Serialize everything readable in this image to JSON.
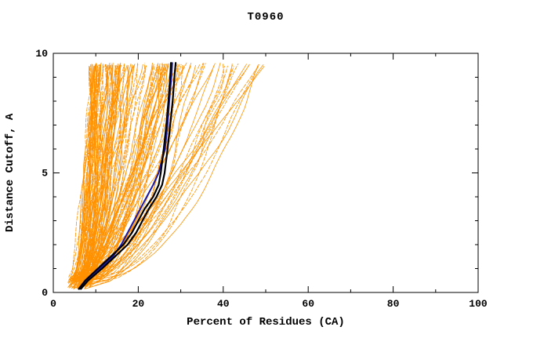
{
  "chart_data": {
    "type": "line",
    "title": "T0960",
    "xlabel": "Percent of Residues (CA)",
    "ylabel": "Distance Cutoff, A",
    "xlim": [
      0,
      100
    ],
    "ylim": [
      0,
      10
    ],
    "x_major_ticks": [
      0,
      20,
      40,
      60,
      80,
      100
    ],
    "x_minor_ticks": [
      10,
      30,
      50,
      70,
      90
    ],
    "y_major_ticks": [
      0,
      5,
      10
    ],
    "y_minor_ticks": [
      1,
      2,
      3,
      4,
      6,
      7,
      8,
      9
    ],
    "grid": false,
    "legend": "none",
    "background": "#ffffff",
    "frame_color": "#000000",
    "ensemble": {
      "name": "server-model-curves",
      "color": "#ff9100",
      "count": 135,
      "seed": 7,
      "x_start_range": [
        3.5,
        9
      ],
      "x_top_range": [
        9.5,
        50
      ],
      "y_start_max": 0.65,
      "y_end": 9.6
    },
    "highlight_series": [
      {
        "name": "model-blue",
        "color": "#1a1aa6",
        "width": 2,
        "points": [
          [
            6.2,
            0.15
          ],
          [
            8,
            0.5
          ],
          [
            11,
            1
          ],
          [
            14,
            1.5
          ],
          [
            16,
            2
          ],
          [
            17.5,
            2.5
          ],
          [
            19,
            3
          ],
          [
            20.5,
            3.5
          ],
          [
            22,
            4
          ],
          [
            23.5,
            4.5
          ],
          [
            24.8,
            5
          ],
          [
            26.3,
            6
          ],
          [
            26.9,
            7
          ],
          [
            27.3,
            8
          ],
          [
            27.8,
            9
          ],
          [
            28,
            9.6
          ]
        ]
      },
      {
        "name": "model-black-1",
        "color": "#000000",
        "width": 2.2,
        "points": [
          [
            6,
            0.15
          ],
          [
            7.5,
            0.5
          ],
          [
            10.5,
            1
          ],
          [
            13.5,
            1.5
          ],
          [
            16.5,
            2
          ],
          [
            18.5,
            2.5
          ],
          [
            20,
            3
          ],
          [
            21.5,
            3.5
          ],
          [
            23.5,
            4
          ],
          [
            24.8,
            4.5
          ],
          [
            25.3,
            5
          ],
          [
            26,
            6
          ],
          [
            26.6,
            7
          ],
          [
            27.1,
            8
          ],
          [
            27.5,
            9
          ],
          [
            27.7,
            9.6
          ]
        ]
      },
      {
        "name": "model-black-2",
        "color": "#000000",
        "width": 2.2,
        "points": [
          [
            6.5,
            0.15
          ],
          [
            8.2,
            0.5
          ],
          [
            11.5,
            1
          ],
          [
            14.5,
            1.5
          ],
          [
            17.5,
            2
          ],
          [
            19.5,
            2.5
          ],
          [
            21,
            3
          ],
          [
            22.5,
            3.5
          ],
          [
            24.3,
            4
          ],
          [
            25.6,
            4.5
          ],
          [
            26.2,
            5
          ],
          [
            26.9,
            6
          ],
          [
            27.5,
            7
          ],
          [
            28.1,
            8
          ],
          [
            28.5,
            9
          ],
          [
            28.8,
            9.6
          ]
        ]
      }
    ]
  }
}
